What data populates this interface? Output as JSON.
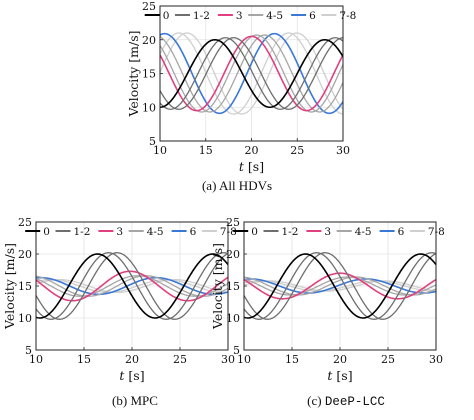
{
  "figure": {
    "captions": [
      {
        "label": "(a)",
        "text": "All HDVs",
        "mono": false
      },
      {
        "label": "(b)",
        "text": "MPC",
        "mono": false
      },
      {
        "label": "(c)",
        "text": "DeeP-LCC",
        "mono": true
      }
    ]
  },
  "chart_data": [
    {
      "type": "line",
      "title": "",
      "xlabel": "t [s]",
      "ylabel": "Velocity [m/s]",
      "xlim": [
        10,
        30
      ],
      "ylim": [
        5,
        25
      ],
      "xticks": [
        10,
        15,
        20,
        25,
        30
      ],
      "yticks": [
        5,
        10,
        15,
        20,
        25
      ],
      "grid": true,
      "legend": {
        "placement": "top",
        "orientation": "horizontal"
      },
      "series": [
        {
          "name": "0",
          "color": "#000000",
          "model": {
            "offset": 15,
            "amplitude": 5,
            "period": 12,
            "peak_time": 16.0
          }
        },
        {
          "name": "1-2",
          "color": "#6e6e6e",
          "model": {
            "offset": 15,
            "amplitude": 5.3,
            "period": 12,
            "peak_time": 17.6
          }
        },
        {
          "name": "3",
          "color": "#e0407f",
          "model": {
            "offset": 15,
            "amplitude": 5.5,
            "period": 12,
            "peak_time": 20.0
          }
        },
        {
          "name": "4-5",
          "color": "#a6a6a6",
          "model": {
            "offset": 15,
            "amplitude": 5.7,
            "period": 12,
            "peak_time": 21.0
          }
        },
        {
          "name": "6",
          "color": "#3a78d8",
          "model": {
            "offset": 15,
            "amplitude": 5.9,
            "period": 12,
            "peak_time": 22.5
          }
        },
        {
          "name": "7-8",
          "color": "#cfcfcf",
          "model": {
            "offset": 15,
            "amplitude": 6.0,
            "period": 12,
            "peak_time": 24.5
          }
        }
      ]
    },
    {
      "type": "line",
      "title": "",
      "xlabel": "t [s]",
      "ylabel": "Velocity [m/s]",
      "xlim": [
        10,
        30
      ],
      "ylim": [
        5,
        25
      ],
      "xticks": [
        10,
        15,
        20,
        25,
        30
      ],
      "yticks": [
        5,
        10,
        15,
        20,
        25
      ],
      "grid": true,
      "legend": {
        "placement": "top",
        "orientation": "horizontal"
      },
      "series": [
        {
          "name": "0",
          "color": "#000000",
          "model": {
            "offset": 15,
            "amplitude": 5,
            "period": 12,
            "peak_time": 16.4
          }
        },
        {
          "name": "1-2",
          "color": "#6e6e6e",
          "model": {
            "offset": 15,
            "amplitude": 5.2,
            "period": 12,
            "peak_time": 18.0
          }
        },
        {
          "name": "3",
          "color": "#e0407f",
          "model": {
            "offset": 15,
            "amplitude": 2.3,
            "period": 12,
            "peak_time": 19.8
          }
        },
        {
          "name": "4-5",
          "color": "#a6a6a6",
          "model": {
            "offset": 15,
            "amplitude": 1.6,
            "period": 12,
            "peak_time": 21.0
          }
        },
        {
          "name": "6",
          "color": "#3a78d8",
          "model": {
            "offset": 15,
            "amplitude": 1.3,
            "period": 12,
            "peak_time": 22.5
          }
        },
        {
          "name": "7-8",
          "color": "#cfcfcf",
          "model": {
            "offset": 15,
            "amplitude": 1.0,
            "period": 12,
            "peak_time": 24.0
          }
        }
      ]
    },
    {
      "type": "line",
      "title": "",
      "xlabel": "t [s]",
      "ylabel": "Velocity [m/s]",
      "xlim": [
        10,
        30
      ],
      "ylim": [
        5,
        25
      ],
      "xticks": [
        10,
        15,
        20,
        25,
        30
      ],
      "yticks": [
        5,
        10,
        15,
        20,
        25
      ],
      "grid": true,
      "legend": {
        "placement": "top",
        "orientation": "horizontal"
      },
      "series": [
        {
          "name": "0",
          "color": "#000000",
          "model": {
            "offset": 15,
            "amplitude": 5,
            "period": 12,
            "peak_time": 16.4
          }
        },
        {
          "name": "1-2",
          "color": "#6e6e6e",
          "model": {
            "offset": 15,
            "amplitude": 5.2,
            "period": 12,
            "peak_time": 18.0
          }
        },
        {
          "name": "3",
          "color": "#e0407f",
          "model": {
            "offset": 15,
            "amplitude": 2.0,
            "period": 12,
            "peak_time": 20.0
          }
        },
        {
          "name": "4-5",
          "color": "#a6a6a6",
          "model": {
            "offset": 15,
            "amplitude": 1.4,
            "period": 12,
            "peak_time": 21.2
          }
        },
        {
          "name": "6",
          "color": "#3a78d8",
          "model": {
            "offset": 15,
            "amplitude": 1.1,
            "period": 12,
            "peak_time": 22.7
          }
        },
        {
          "name": "7-8",
          "color": "#cfcfcf",
          "model": {
            "offset": 15,
            "amplitude": 0.8,
            "period": 12,
            "peak_time": 24.2
          }
        }
      ]
    }
  ]
}
